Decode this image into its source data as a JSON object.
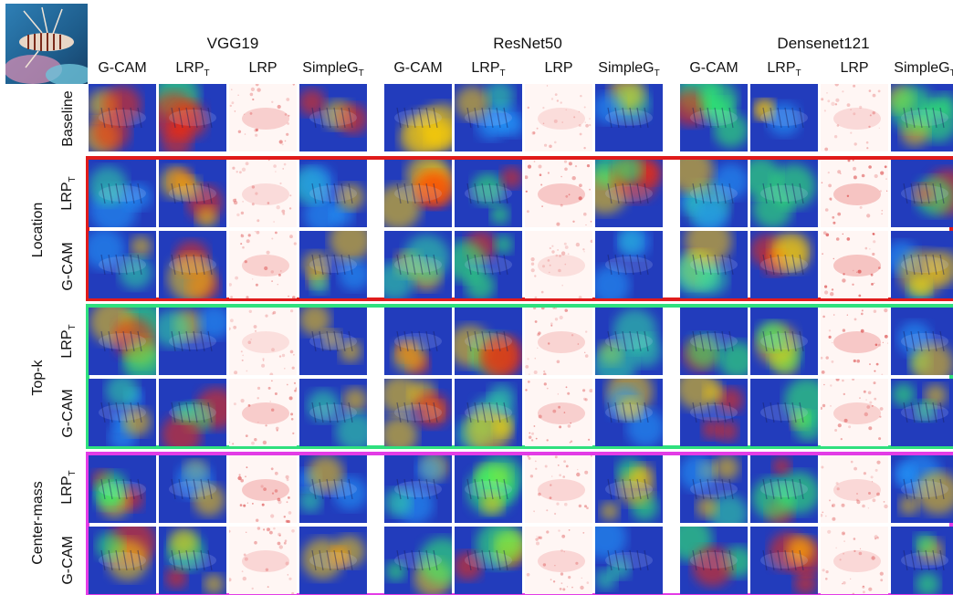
{
  "input_image": {
    "icon": "lionfish-reef-thumbnail"
  },
  "models": [
    "VGG19",
    "ResNet50",
    "Densenet121"
  ],
  "columns": [
    {
      "text": "G-CAM",
      "sub": ""
    },
    {
      "text": "LRP",
      "sub": "T"
    },
    {
      "text": "LRP",
      "sub": ""
    },
    {
      "text": "SimpleG",
      "sub": "T"
    }
  ],
  "rows": {
    "baseline": "Baseline",
    "lrp_t": {
      "text": "LRP",
      "sub": "T"
    },
    "gcam": "G-CAM"
  },
  "groups": [
    {
      "label": "Location",
      "color": "#e01b1b"
    },
    {
      "label": "Top-k",
      "color": "#2fe07e"
    },
    {
      "label": "Center-mass",
      "color": "#e33ce6"
    }
  ]
}
